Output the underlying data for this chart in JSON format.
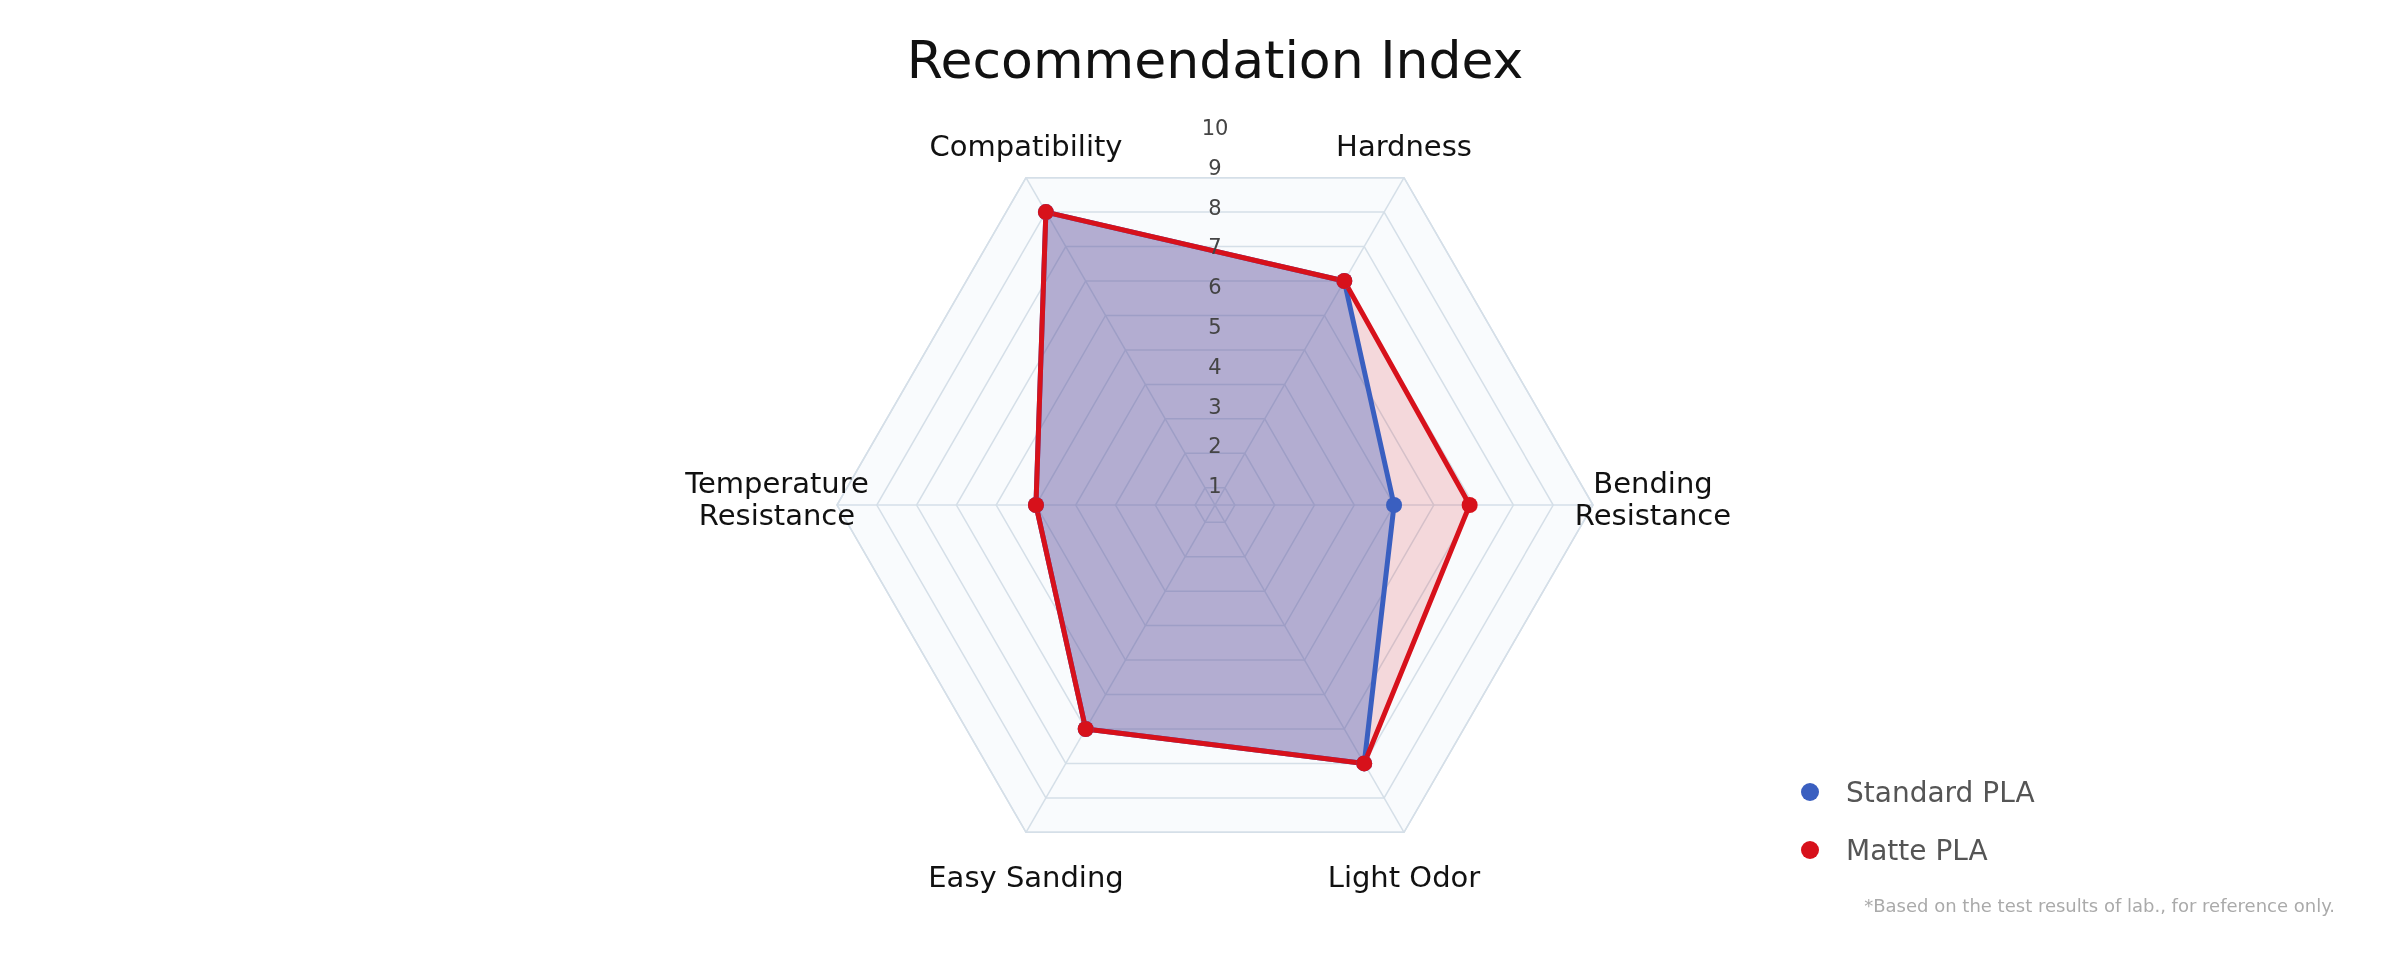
{
  "chart_data": {
    "type": "radar",
    "title": "Recommendation Index",
    "categories": [
      "Compatibility",
      "Hardness",
      "Bending Resistance",
      "Light Odor",
      "Easy Sanding",
      "Temperature Resistance"
    ],
    "series": [
      {
        "name": "Matte PLA",
        "color": "#d7111b",
        "values": [
          9,
          7,
          6.9,
          8,
          7,
          5
        ]
      },
      {
        "name": "Standard PLA",
        "color": "#3a5fc0",
        "values": [
          9,
          7,
          5,
          8,
          7,
          5
        ]
      }
    ],
    "ylim": [
      0.5,
      10
    ],
    "yticks": [
      1,
      2,
      3,
      4,
      5,
      6,
      7,
      8,
      9,
      10
    ],
    "grid": true,
    "legend": "bottom right",
    "marker": "circle",
    "annotations": [
      "*Based on the test results of lab., for reference only."
    ]
  }
}
